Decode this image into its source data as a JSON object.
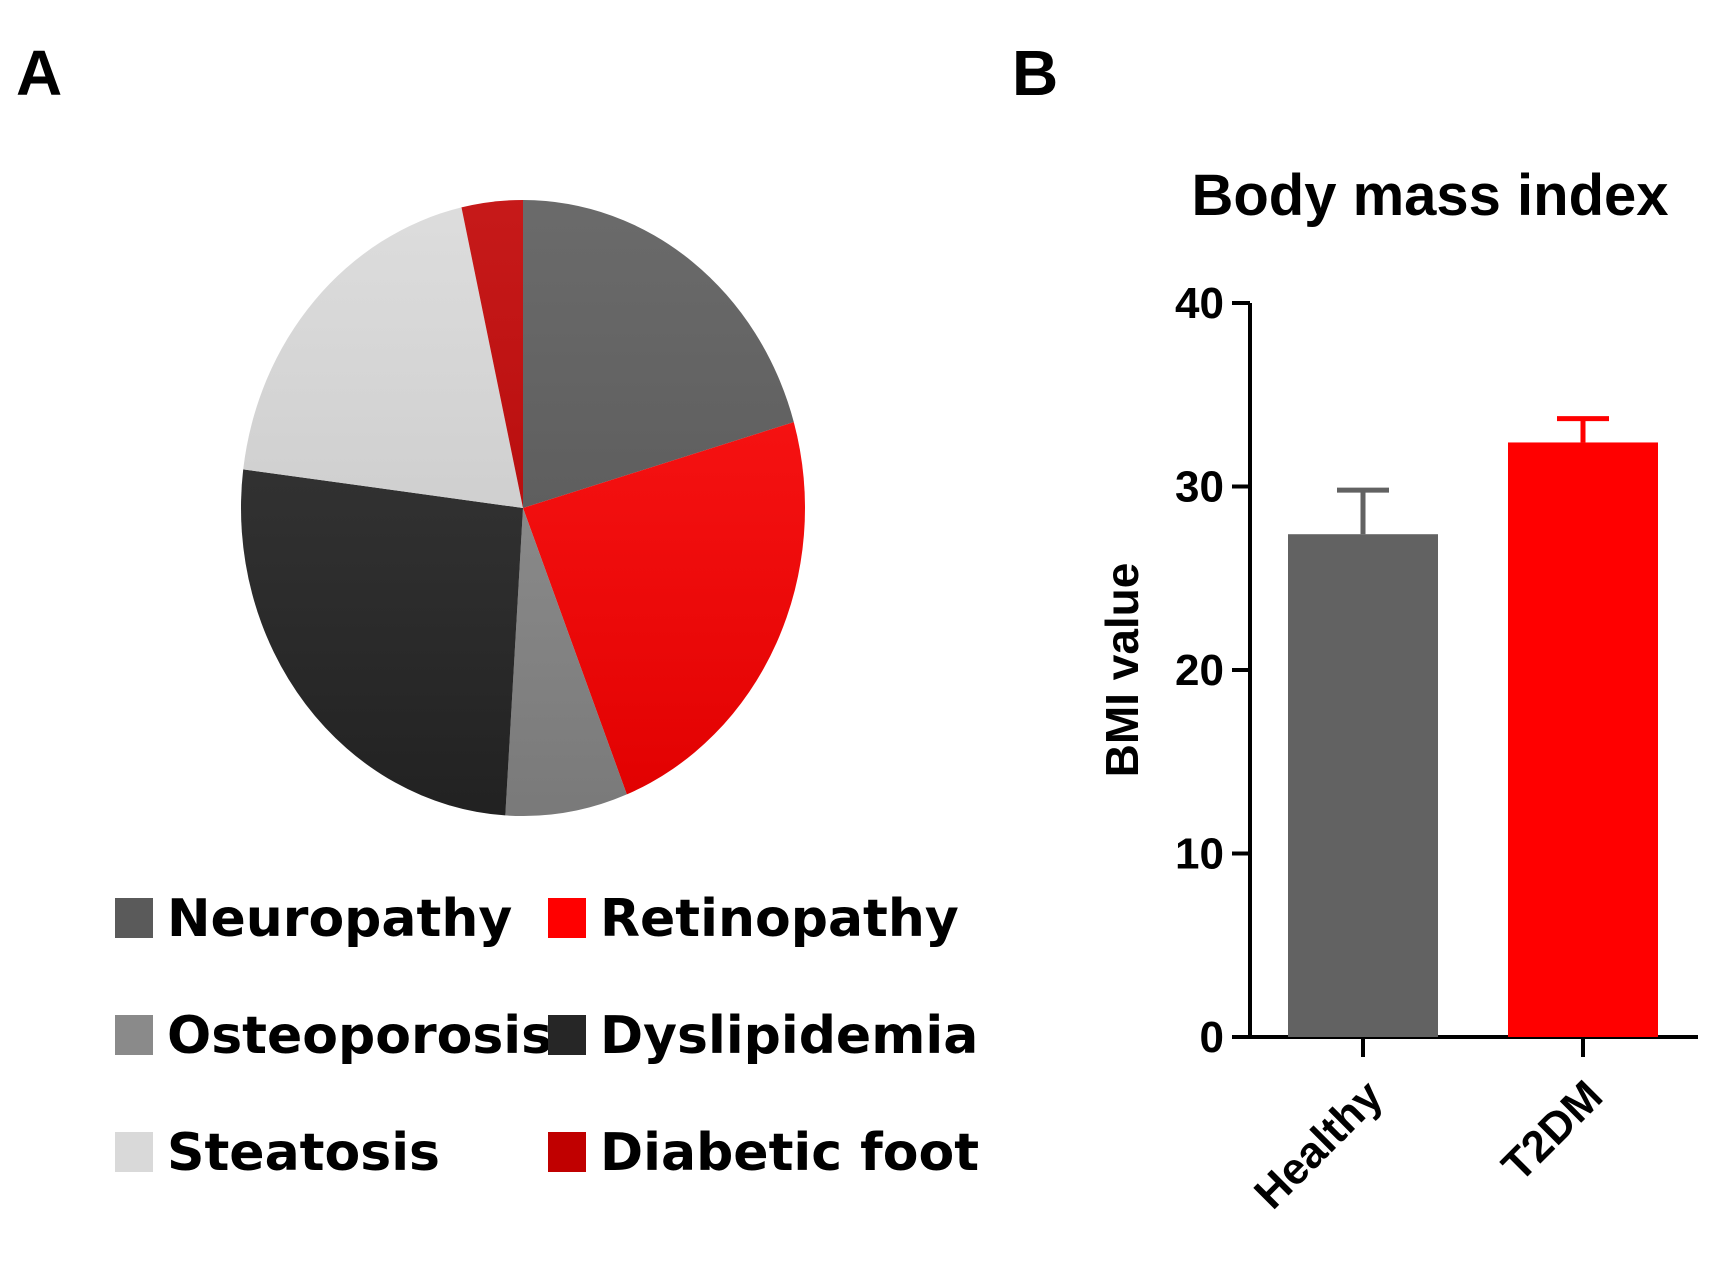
{
  "panels": {
    "a_label": "A",
    "b_label": "B"
  },
  "chart_data": [
    {
      "type": "pie",
      "panel": "A",
      "title": "",
      "categories": [
        "Neuropathy",
        "Retinopathy",
        "Osteoporosis",
        "Dyslipidemia",
        "Steatosis",
        "Diabetic foot"
      ],
      "values": [
        20.5,
        23.5,
        7,
        26,
        19.5,
        3.5
      ],
      "colors": [
        "#5a5a5a",
        "#ff0000",
        "#8a8a8a",
        "#262626",
        "#d9d9d9",
        "#c00000"
      ],
      "legend_position": "bottom"
    },
    {
      "type": "bar",
      "panel": "B",
      "title": "Body mass index",
      "xlabel": "",
      "ylabel": "BMI value",
      "categories": [
        "Healthy",
        "T2DM"
      ],
      "values": [
        27.4,
        32.4
      ],
      "errors": [
        2.4,
        1.3
      ],
      "colors": [
        "#626262",
        "#ff0000"
      ],
      "ylim": [
        0,
        40
      ],
      "yticks": [
        0,
        10,
        20,
        30,
        40
      ]
    }
  ]
}
